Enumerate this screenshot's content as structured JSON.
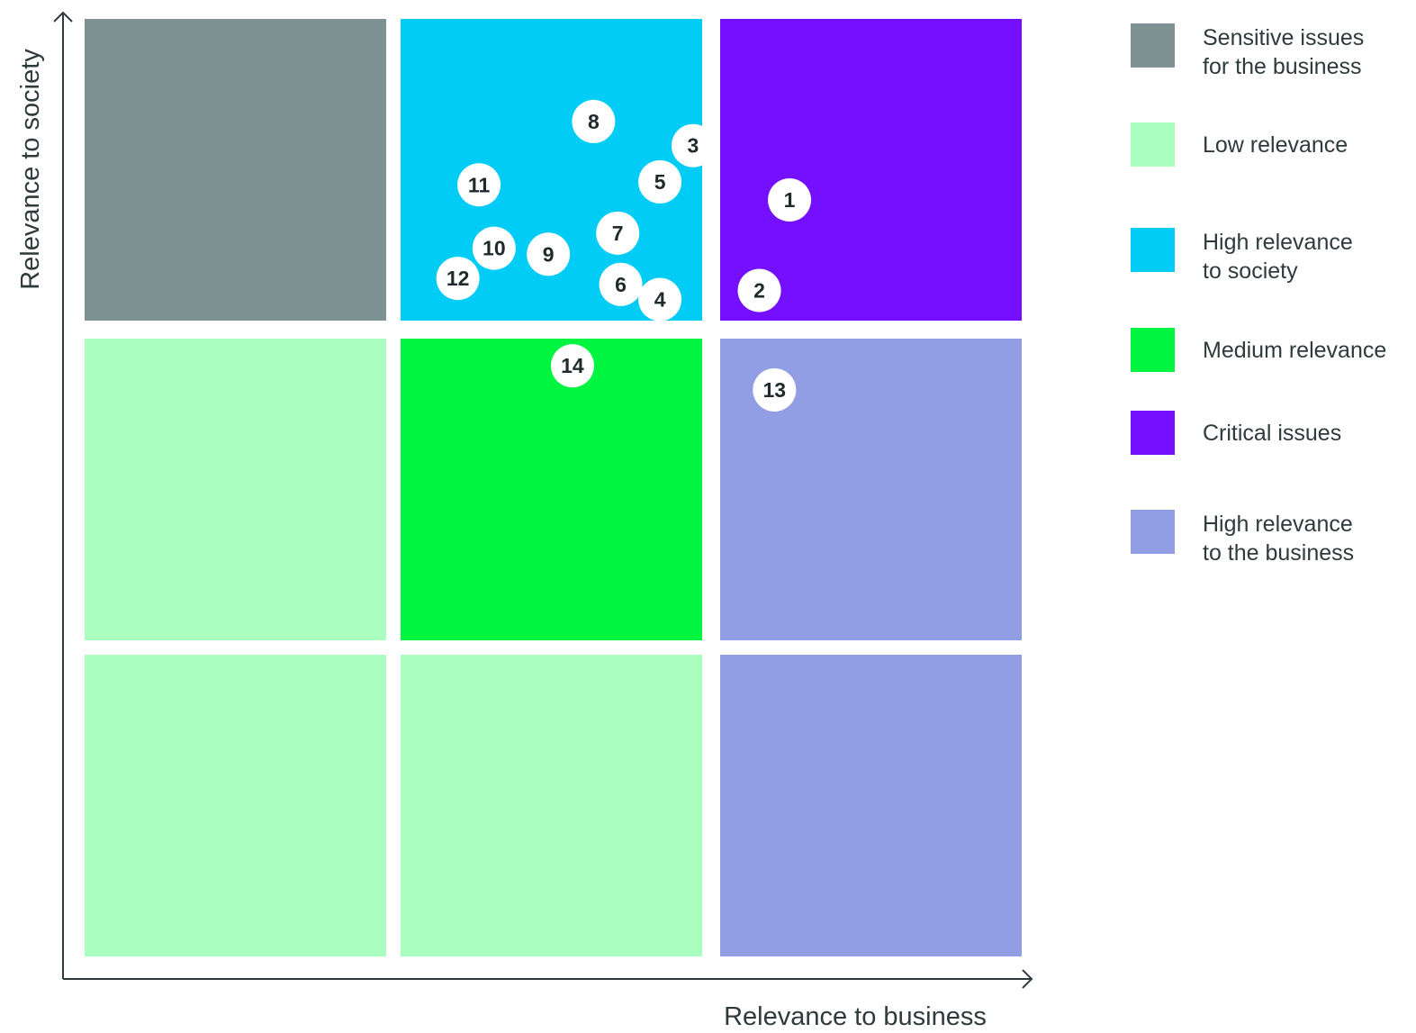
{
  "chart_data": {
    "type": "scatter",
    "title": "",
    "xlabel": "Relevance to business",
    "ylabel": "Relevance to society",
    "xlim": [
      0,
      3
    ],
    "ylim": [
      0,
      3
    ],
    "grid": {
      "cells": [
        {
          "col": 0,
          "row": 2,
          "category": "Sensitive issues for the business"
        },
        {
          "col": 1,
          "row": 2,
          "category": "High relevance to society"
        },
        {
          "col": 2,
          "row": 2,
          "category": "Critical issues"
        },
        {
          "col": 0,
          "row": 1,
          "category": "Low relevance"
        },
        {
          "col": 1,
          "row": 1,
          "category": "Medium relevance"
        },
        {
          "col": 2,
          "row": 1,
          "category": "High relevance to the business"
        },
        {
          "col": 0,
          "row": 0,
          "category": "Low relevance"
        },
        {
          "col": 1,
          "row": 0,
          "category": "Low relevance"
        },
        {
          "col": 2,
          "row": 0,
          "category": "High relevance to the business"
        }
      ]
    },
    "legend": [
      {
        "label": "Sensitive issues\nfor the business",
        "color": "#7e9294"
      },
      {
        "label": "Low relevance",
        "color": "#aaffbf"
      },
      {
        "label": "High relevance\nto society",
        "color": "#00ccf5"
      },
      {
        "label": "Medium relevance",
        "color": "#00f540"
      },
      {
        "label": "Critical issues",
        "color": "#7410ff"
      },
      {
        "label": "High relevance\nto the business",
        "color": "#929ee3"
      }
    ],
    "legend_position": "right",
    "points": [
      {
        "label": "1",
        "x": 2.23,
        "y": 2.4
      },
      {
        "label": "2",
        "x": 2.13,
        "y": 2.1
      },
      {
        "label": "3",
        "x": 1.97,
        "y": 2.58
      },
      {
        "label": "4",
        "x": 1.86,
        "y": 2.07
      },
      {
        "label": "5",
        "x": 1.86,
        "y": 2.46
      },
      {
        "label": "6",
        "x": 1.73,
        "y": 2.12
      },
      {
        "label": "7",
        "x": 1.72,
        "y": 2.29
      },
      {
        "label": "8",
        "x": 1.64,
        "y": 2.66
      },
      {
        "label": "9",
        "x": 1.49,
        "y": 2.22
      },
      {
        "label": "10",
        "x": 1.31,
        "y": 2.24
      },
      {
        "label": "11",
        "x": 1.26,
        "y": 2.45
      },
      {
        "label": "12",
        "x": 1.19,
        "y": 2.14
      },
      {
        "label": "13",
        "x": 2.18,
        "y": 1.83
      },
      {
        "label": "14",
        "x": 1.57,
        "y": 1.91
      }
    ]
  }
}
